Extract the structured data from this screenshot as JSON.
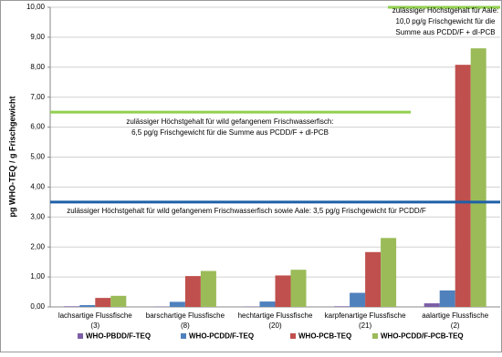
{
  "chart_data": {
    "type": "bar",
    "y_label": "pg WHO-TEQ / g Frischgewicht",
    "categories": [
      [
        "lachsartige Flussfische",
        "(3)"
      ],
      [
        "barschartige Flussfische",
        "(8)"
      ],
      [
        "hechtartige Flussfische",
        "(20)"
      ],
      [
        "karpfenartige Flussfische",
        "(21)"
      ],
      [
        "aalartige Flussfische",
        "(2)"
      ]
    ],
    "series": [
      {
        "name": "WHO-PBDD/F-TEQ",
        "color": "#7b5ea7",
        "values": [
          0.02,
          0.01,
          0.01,
          0.02,
          0.12
        ]
      },
      {
        "name": "WHO-PCDD/F-TEQ",
        "color": "#4f81bd",
        "values": [
          0.06,
          0.17,
          0.18,
          0.47,
          0.55
        ]
      },
      {
        "name": "WHO-PCB-TEQ",
        "color": "#c0504d",
        "values": [
          0.3,
          1.03,
          1.05,
          1.83,
          8.08
        ]
      },
      {
        "name": "WHO-PCDD/F-PCB-TEQ",
        "color": "#9bbb59",
        "values": [
          0.37,
          1.2,
          1.24,
          2.3,
          8.63
        ]
      }
    ],
    "ylim": [
      0,
      10
    ],
    "yticks": [
      {
        "value": 0,
        "label": "0,00"
      },
      {
        "value": 1,
        "label": "1,00"
      },
      {
        "value": 2,
        "label": "2,00"
      },
      {
        "value": 3,
        "label": "3,00"
      },
      {
        "value": 4,
        "label": "4,00"
      },
      {
        "value": 5,
        "label": "5,00"
      },
      {
        "value": 6,
        "label": "6,00"
      },
      {
        "value": 7,
        "label": "7,00"
      },
      {
        "value": 8,
        "label": "8,00"
      },
      {
        "value": 9,
        "label": "9,00"
      },
      {
        "value": 10,
        "label": "10,00"
      }
    ],
    "grid": true,
    "legend": "bottom",
    "reference_lines": [
      {
        "value": 6.5,
        "color": "#92d050",
        "text": [
          "zulässiger Höchstgehalt für wild gefangenem Frischwasserfisch:",
          "6,5 pg/g Frischgewicht für die Summe aus PCDD/F + dl-PCB"
        ]
      },
      {
        "value": 3.5,
        "color": "#1f5fa8",
        "text": [
          "zulässiger Höchstgehalt für wild gefangenem Frischwasserfisch sowie Aale: 3,5 pg/g Frischgewicht für PCDD/F"
        ]
      },
      {
        "value": 10,
        "color": "#92d050",
        "text": [
          "zulässiger Höchstgehalt für Aale:",
          "10,0 pg/g Frischgewicht für die",
          "Summe aus PCDD/F + dl-PCB"
        ]
      }
    ]
  }
}
